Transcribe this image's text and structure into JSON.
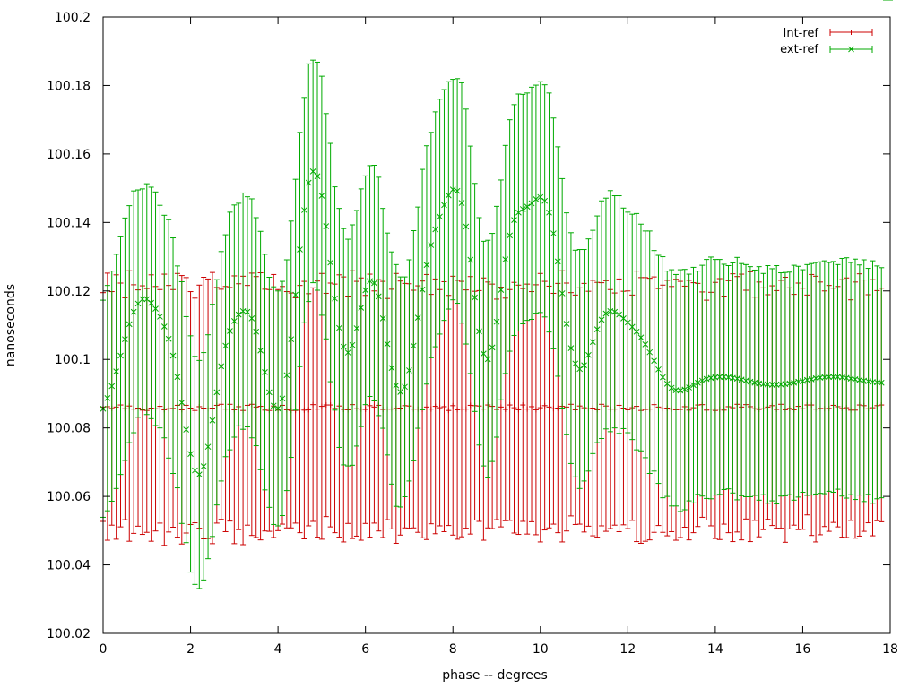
{
  "chart_data": {
    "type": "scatter",
    "title": "",
    "xlabel": "phase -- degrees",
    "ylabel": "nanoseconds",
    "xlim": [
      0,
      18
    ],
    "ylim": [
      100.02,
      100.2
    ],
    "x_ticks": [
      "0",
      "2",
      "4",
      "6",
      "8",
      "10",
      "12",
      "14",
      "16",
      "18"
    ],
    "y_ticks": [
      "100.02",
      "100.04",
      "100.06",
      "100.08",
      "100.1",
      "100.12",
      "100.14",
      "100.16",
      "100.18",
      "100.2"
    ],
    "grid": false,
    "legend_position": "top-right",
    "x": [
      0.0,
      0.1,
      0.2,
      0.3,
      0.4,
      0.5,
      0.6,
      0.7,
      0.8,
      0.9,
      1.0,
      1.1,
      1.2,
      1.3,
      1.4,
      1.5,
      1.6,
      1.7,
      1.8,
      1.9,
      2.0,
      2.1,
      2.2,
      2.3,
      2.4,
      2.5,
      2.6,
      2.7,
      2.8,
      2.9,
      3.0,
      3.1,
      3.2,
      3.3,
      3.4,
      3.5,
      3.6,
      3.7,
      3.8,
      3.9,
      4.0,
      4.1,
      4.2,
      4.3,
      4.4,
      4.5,
      4.6,
      4.7,
      4.8,
      4.9,
      5.0,
      5.1,
      5.2,
      5.3,
      5.4,
      5.5,
      5.6,
      5.7,
      5.8,
      5.9,
      6.0,
      6.1,
      6.2,
      6.3,
      6.4,
      6.5,
      6.6,
      6.7,
      6.8,
      6.9,
      7.0,
      7.1,
      7.2,
      7.3,
      7.4,
      7.5,
      7.6,
      7.7,
      7.8,
      7.9,
      8.0,
      8.1,
      8.2,
      8.3,
      8.4,
      8.5,
      8.6,
      8.7,
      8.8,
      8.9,
      9.0,
      9.1,
      9.2,
      9.3,
      9.4,
      9.5,
      9.6,
      9.7,
      9.8,
      9.9,
      10.0,
      10.1,
      10.2,
      10.3,
      10.4,
      10.5,
      10.6,
      10.7,
      10.8,
      10.9,
      11.0,
      11.1,
      11.2,
      11.3,
      11.4,
      11.5,
      11.6,
      11.7,
      11.8,
      11.9,
      12.0,
      12.1,
      12.2,
      12.3,
      12.4,
      12.5,
      12.6,
      12.7,
      12.8,
      12.9,
      13.0,
      13.1,
      13.2,
      13.3,
      13.4,
      13.5,
      13.6,
      13.7,
      13.8,
      13.9,
      14.0,
      14.1,
      14.2,
      14.3,
      14.4,
      14.5,
      14.6,
      14.7,
      14.8,
      14.9,
      15.0,
      15.1,
      15.2,
      15.3,
      15.4,
      15.5,
      15.6,
      15.7,
      15.8,
      15.9,
      16.0,
      16.1,
      16.2,
      16.3,
      16.4,
      16.5,
      16.6,
      16.7,
      16.8,
      16.9,
      17.0,
      17.1,
      17.2,
      17.3,
      17.4,
      17.5,
      17.6,
      17.7,
      17.8,
      17.9,
      18.0
    ],
    "series": [
      {
        "name": "Int-ref",
        "color": "#cc0000",
        "marker": "+",
        "y": [
          100.0861,
          100.0862,
          100.0857,
          100.0861,
          100.0867,
          100.0856,
          100.0864,
          100.0855,
          100.0858,
          100.0852,
          100.0851,
          100.0858,
          100.0856,
          100.0863,
          100.0853,
          100.0856,
          100.0857,
          100.0866,
          100.0853,
          100.0866,
          100.0858,
          100.0851,
          100.0862,
          100.0858,
          100.0856,
          100.0858,
          100.0866,
          100.0869,
          100.0855,
          100.0869,
          100.0853,
          100.0862,
          100.0851,
          100.0866,
          100.0869,
          100.0861,
          100.0863,
          100.0852,
          100.0851,
          100.0864,
          100.0852,
          100.0866,
          100.0853,
          100.0851,
          100.0851,
          100.0855,
          100.0852,
          100.0853,
          100.0868,
          100.0855,
          100.0863,
          100.0867,
          100.0867,
          100.0857,
          100.0864,
          100.0854,
          100.0853,
          100.0868,
          100.0856,
          100.0855,
          100.0854,
          100.0865,
          100.0861,
          100.0866,
          100.0854,
          100.0855,
          100.0855,
          100.0857,
          100.0858,
          100.0865,
          100.0864,
          100.0855,
          100.0855,
          100.0854,
          100.0861,
          100.0855,
          100.0863,
          100.0859,
          100.0862,
          100.0851,
          100.0865,
          100.0853,
          100.0855,
          100.0855,
          100.0866,
          100.0865,
          100.0864,
          100.0855,
          100.0867,
          100.0863,
          100.0854,
          100.0861,
          100.0854,
          100.0867,
          100.0859,
          100.0853,
          100.0867,
          100.0855,
          100.0862,
          100.0853,
          100.0859,
          100.0865,
          100.0861,
          100.0856,
          100.0858,
          100.0863,
          100.0861,
          100.0869,
          100.0853,
          100.0864,
          100.0859,
          100.0856,
          100.0858,
          100.0853,
          100.0869,
          100.0864,
          100.0855,
          100.0855,
          100.0866,
          100.0858,
          100.0853,
          100.0859,
          100.0863,
          100.0851,
          100.0854,
          100.0855,
          100.0868,
          100.0861,
          100.0856,
          100.0858,
          100.0855,
          100.0853,
          100.0854,
          100.0862,
          100.0852,
          100.0859,
          100.0867,
          100.0868,
          100.0852,
          100.0855,
          100.0851,
          100.0855,
          100.0852,
          100.0862,
          100.0859,
          100.0869,
          100.0861,
          100.0868,
          100.0862,
          100.0856,
          100.0854,
          100.0856,
          100.0861,
          100.0865,
          100.0854,
          100.0869,
          100.0853,
          100.0857,
          100.0853,
          100.0863,
          100.0856,
          100.0867,
          100.0867,
          100.0855,
          100.0857,
          100.0856,
          100.0857,
          100.0866,
          100.0862,
          100.0857,
          100.0859,
          100.0852,
          100.0852,
          100.0867,
          100.0865,
          100.0856,
          100.0859,
          100.0865,
          100.0867
        ],
        "yerr": [
          0.0334,
          0.039,
          0.0341,
          0.0386,
          0.0356,
          0.0324,
          0.0395,
          0.0363,
          0.0345,
          0.0363,
          0.0356,
          0.0389,
          0.0357,
          0.0341,
          0.0396,
          0.036,
          0.0347,
          0.0385,
          0.0392,
          0.0373,
          0.034,
          0.0328,
          0.0355,
          0.0382,
          0.0379,
          0.0396,
          0.0344,
          0.0336,
          0.0358,
          0.0341,
          0.0391,
          0.0359,
          0.0392,
          0.035,
          0.0383,
          0.0381,
          0.039,
          0.0353,
          0.0353,
          0.0384,
          0.0352,
          0.0347,
          0.0345,
          0.0343,
          0.0329,
          0.0361,
          0.0376,
          0.0339,
          0.0341,
          0.0374,
          0.0388,
          0.0326,
          0.0356,
          0.0363,
          0.0383,
          0.0387,
          0.0332,
          0.0391,
          0.0372,
          0.0383,
          0.0333,
          0.0384,
          0.0339,
          0.0367,
          0.0374,
          0.0323,
          0.035,
          0.0394,
          0.0371,
          0.0357,
          0.0357,
          0.0347,
          0.036,
          0.0375,
          0.0387,
          0.0335,
          0.0372,
          0.0345,
          0.0365,
          0.0336,
          0.0378,
          0.0378,
          0.0373,
          0.0348,
          0.0376,
          0.0334,
          0.0337,
          0.0383,
          0.0359,
          0.0357,
          0.0322,
          0.035,
          0.0325,
          0.0337,
          0.0366,
          0.0364,
          0.034,
          0.0365,
          0.0336,
          0.0365,
          0.0392,
          0.0363,
          0.0353,
          0.0337,
          0.0364,
          0.0396,
          0.0362,
          0.0326,
          0.0335,
          0.0345,
          0.0363,
          0.0343,
          0.0373,
          0.0372,
          0.0355,
          0.0366,
          0.0349,
          0.0339,
          0.0369,
          0.0341,
          0.0347,
          0.0329,
          0.0395,
          0.0388,
          0.0385,
          0.0382,
          0.0373,
          0.0346,
          0.0361,
          0.0373,
          0.0358,
          0.0381,
          0.0374,
          0.0352,
          0.0379,
          0.0365,
          0.0355,
          0.0329,
          0.0321,
          0.0341,
          0.0374,
          0.0381,
          0.0333,
          0.0368,
          0.0391,
          0.0373,
          0.0388,
          0.0334,
          0.0394,
          0.0326,
          0.0372,
          0.0353,
          0.0328,
          0.035,
          0.0347,
          0.0362,
          0.0387,
          0.0352,
          0.0337,
          0.036,
          0.0352,
          0.0321,
          0.0381,
          0.0388,
          0.0369,
          0.0344,
          0.0359,
          0.0342,
          0.0351,
          0.0376,
          0.0379,
          0.0322,
          0.0374,
          0.0383,
          0.0367,
          0.0333,
          0.0374,
          0.0336,
          0.0341
        ]
      },
      {
        "name": "ext-ref",
        "color": "#00aa00",
        "marker": "x",
        "y": [
          100.0856,
          100.0887,
          100.0922,
          100.0965,
          100.1011,
          100.1059,
          100.1103,
          100.1139,
          100.1163,
          100.1176,
          100.1176,
          100.1165,
          100.1148,
          100.1125,
          100.1096,
          100.106,
          100.1011,
          100.0949,
          100.0874,
          100.0795,
          100.0724,
          100.0676,
          100.0664,
          100.0688,
          100.0745,
          100.0822,
          100.0904,
          100.098,
          100.104,
          100.1083,
          100.1112,
          100.1131,
          100.1141,
          100.1139,
          100.112,
          100.1081,
          100.1026,
          100.0963,
          100.0904,
          100.0865,
          100.0857,
          100.0886,
          100.0954,
          100.1059,
          100.1189,
          100.1321,
          100.1436,
          100.1516,
          100.1549,
          100.1535,
          100.1478,
          100.1389,
          100.1283,
          100.1178,
          100.1092,
          100.1037,
          100.102,
          100.1042,
          100.1091,
          100.1151,
          100.1202,
          100.1229,
          100.1223,
          100.1184,
          100.112,
          100.1045,
          100.0975,
          100.0924,
          100.0905,
          100.092,
          100.0968,
          100.104,
          100.1122,
          100.1204,
          100.1276,
          100.1334,
          100.138,
          100.1417,
          100.1451,
          100.1479,
          100.1496,
          100.1492,
          100.1457,
          100.1388,
          100.1291,
          100.1181,
          100.1082,
          100.1017,
          100.1001,
          100.1035,
          100.111,
          100.1203,
          100.1292,
          100.1362,
          100.1407,
          100.1429,
          100.1439,
          100.1446,
          100.1456,
          100.1468,
          100.1474,
          100.1463,
          100.1429,
          100.1368,
          100.1286,
          100.1193,
          100.1104,
          100.1033,
          100.0988,
          100.0972,
          100.0983,
          100.1013,
          100.1051,
          100.1088,
          100.1116,
          100.1134,
          100.1141,
          100.1139,
          100.1131,
          100.112,
          100.1108,
          100.1095,
          100.1081,
          100.1064,
          100.1044,
          100.1021,
          100.0996,
          100.0971,
          100.0948,
          100.0929,
          100.0917,
          100.091,
          100.0909,
          100.0912,
          100.0918,
          100.0925,
          100.0932,
          100.0938,
          100.0943,
          100.0946,
          100.0948,
          100.0949,
          100.0949,
          100.0948,
          100.0946,
          100.0944,
          100.0941,
          100.0938,
          100.0935,
          100.0932,
          100.093,
          100.0928,
          100.0927,
          100.0926,
          100.0926,
          100.0927,
          100.0928,
          100.093,
          100.0932,
          100.0935,
          100.0937,
          100.094,
          100.0942,
          100.0945,
          100.0947,
          100.0948,
          100.0949,
          100.0949,
          100.0949,
          100.0948,
          100.0946,
          100.0944,
          100.0942,
          100.094,
          100.0938,
          100.0936,
          100.0934,
          100.0933,
          100.0932
        ],
        "yerr": [
          0.0317,
          0.0329,
          0.0336,
          0.0342,
          0.0347,
          0.0354,
          0.0346,
          0.0353,
          0.0332,
          0.0322,
          0.0337,
          0.0338,
          0.0341,
          0.0325,
          0.0325,
          0.0348,
          0.0344,
          0.0324,
          0.0353,
          0.033,
          0.0345,
          0.0333,
          0.0333,
          0.0332,
          0.0327,
          0.0339,
          0.0329,
          0.0335,
          0.0324,
          0.0347,
          0.0339,
          0.0325,
          0.0345,
          0.0336,
          0.0349,
          0.0333,
          0.0348,
          0.0344,
          0.0336,
          0.0347,
          0.0343,
          0.0342,
          0.0337,
          0.0345,
          0.0337,
          0.0342,
          0.0329,
          0.0347,
          0.0325,
          0.0333,
          0.0349,
          0.0329,
          0.0348,
          0.0326,
          0.0349,
          0.0345,
          0.0331,
          0.0351,
          0.0344,
          0.0347,
          0.0334,
          0.0337,
          0.0344,
          0.0348,
          0.0321,
          0.0324,
          0.0339,
          0.0353,
          0.0336,
          0.0321,
          0.0323,
          0.0336,
          0.0323,
          0.0351,
          0.0348,
          0.0329,
          0.0343,
          0.0343,
          0.0337,
          0.0332,
          0.0322,
          0.0328,
          0.0351,
          0.0343,
          0.0332,
          0.0333,
          0.0332,
          0.0328,
          0.0347,
          0.0333,
          0.0337,
          0.0321,
          0.0333,
          0.0338,
          0.0337,
          0.0346,
          0.0335,
          0.0332,
          0.0339,
          0.0333,
          0.0337,
          0.0339,
          0.0349,
          0.0337,
          0.0335,
          0.0335,
          0.0324,
          0.0337,
          0.0331,
          0.0349,
          0.0338,
          0.0339,
          0.0326,
          0.0331,
          0.0347,
          0.0337,
          0.0352,
          0.0339,
          0.0347,
          0.0322,
          0.0322,
          0.0329,
          0.0345,
          0.0331,
          0.0331,
          0.0354,
          0.0322,
          0.0333,
          0.0352,
          0.0329,
          0.0345,
          0.0338,
          0.0353,
          0.0351,
          0.0331,
          0.0344,
          0.0326,
          0.0337,
          0.0349,
          0.0353,
          0.0344,
          0.0343,
          0.0329,
          0.0326,
          0.0336,
          0.0354,
          0.0339,
          0.0339,
          0.0336,
          0.0329,
          0.0341,
          0.0323,
          0.0347,
          0.0339,
          0.0348,
          0.0326,
          0.0326,
          0.0325,
          0.0343,
          0.0337,
          0.0325,
          0.0337,
          0.0338,
          0.0338,
          0.0338,
          0.034,
          0.0334,
          0.0337,
          0.0328,
          0.0347,
          0.0351,
          0.0339,
          0.0351,
          0.0336,
          0.0353,
          0.033,
          0.0354,
          0.034,
          0.0336,
          0.0326,
          0.0341
        ]
      }
    ]
  }
}
